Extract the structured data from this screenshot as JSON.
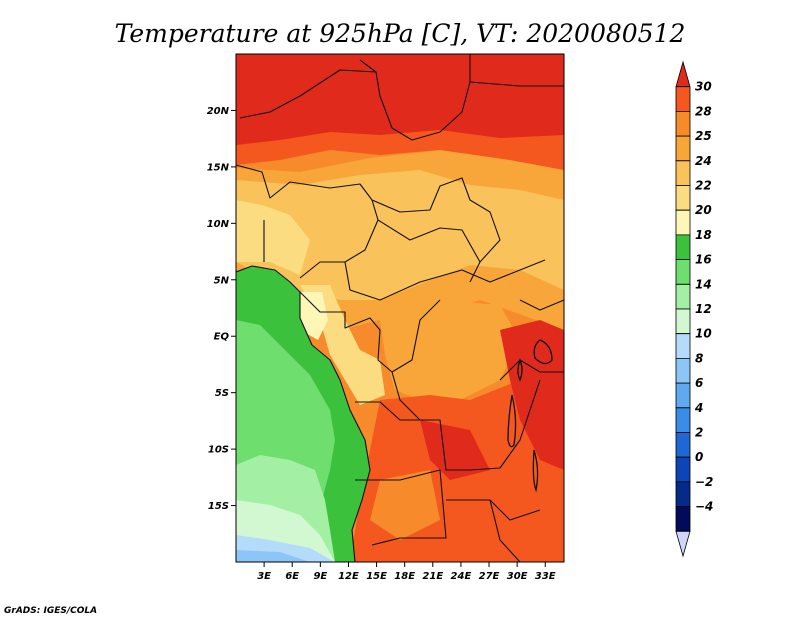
{
  "title": "Temperature at 925hPa [C], VT: 2020080512",
  "credit": "GrADS: IGES/COLA",
  "map": {
    "lon_range": [
      0,
      35
    ],
    "lat_range": [
      -20,
      25
    ],
    "lat_ticks": [
      {
        "value": 20,
        "label": "20N"
      },
      {
        "value": 15,
        "label": "15N"
      },
      {
        "value": 10,
        "label": "10N"
      },
      {
        "value": 5,
        "label": "5N"
      },
      {
        "value": 0,
        "label": "EQ"
      },
      {
        "value": -5,
        "label": "5S"
      },
      {
        "value": -10,
        "label": "10S"
      },
      {
        "value": -15,
        "label": "15S"
      }
    ],
    "lon_ticks": [
      {
        "value": 3,
        "label": "3E"
      },
      {
        "value": 6,
        "label": "6E"
      },
      {
        "value": 9,
        "label": "9E"
      },
      {
        "value": 12,
        "label": "12E"
      },
      {
        "value": 15,
        "label": "15E"
      },
      {
        "value": 18,
        "label": "18E"
      },
      {
        "value": 21,
        "label": "21E"
      },
      {
        "value": 24,
        "label": "24E"
      },
      {
        "value": 27,
        "label": "27E"
      },
      {
        "value": 30,
        "label": "30E"
      },
      {
        "value": 33,
        "label": "33E"
      }
    ]
  },
  "colorbar": {
    "labels": [
      "30",
      "28",
      "25",
      "24",
      "22",
      "20",
      "18",
      "16",
      "14",
      "12",
      "10",
      "8",
      "6",
      "4",
      "2",
      "0",
      "−2",
      "−4"
    ],
    "colors": [
      "#e02a1c",
      "#f4581f",
      "#f78a2a",
      "#f8a63a",
      "#f9c25a",
      "#fbdc80",
      "#fdf6b6",
      "#3cc13c",
      "#6ede6e",
      "#a3efa3",
      "#d2f8d2",
      "#b4dcfa",
      "#8cc6f7",
      "#5ea9ef",
      "#3a8de6",
      "#1e68d6",
      "#0d45b6",
      "#062a88",
      "#020a5a",
      "#d2d6f6"
    ]
  },
  "colors": {
    "hot": "#e02a1c",
    "warm": "#f4581f",
    "ocean_green": "#3cc13c",
    "border": "#111111"
  }
}
